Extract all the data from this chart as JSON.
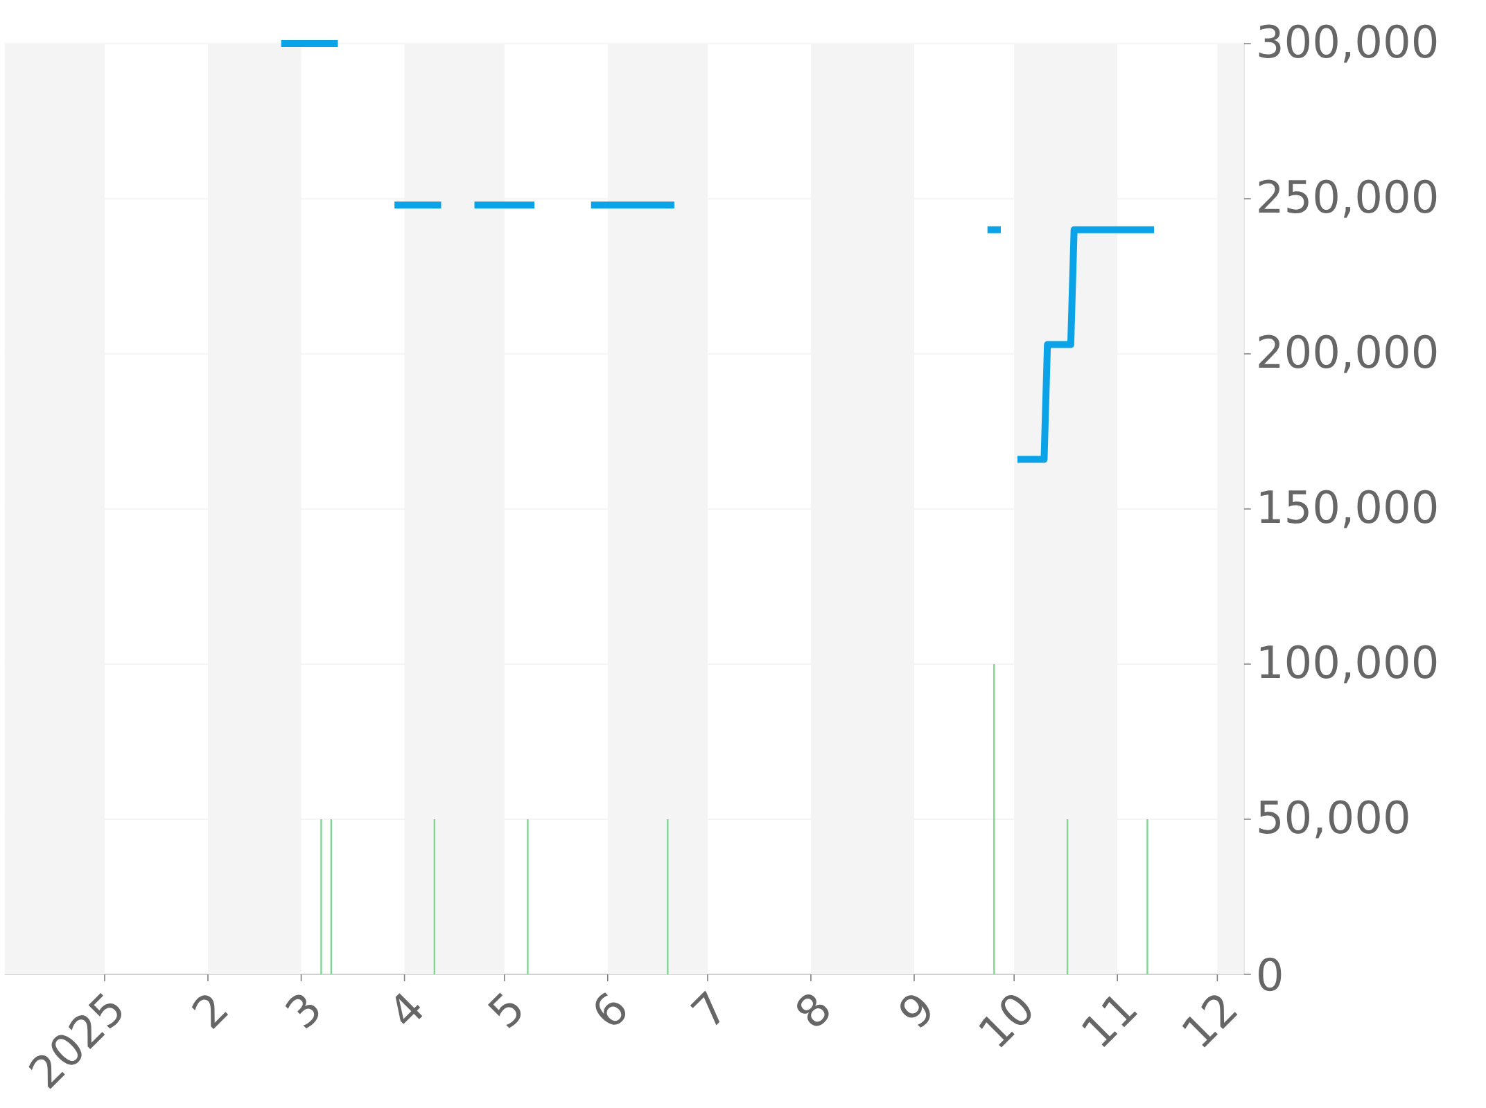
{
  "chart_data": {
    "type": "line",
    "xlim": [
      "2024-12-02",
      "2025-12-09"
    ],
    "ylim": [
      0,
      300000
    ],
    "xticks": [
      {
        "value": "2025-01-01",
        "label": "2025"
      },
      {
        "value": "2025-02-01",
        "label": "2"
      },
      {
        "value": "2025-03-01",
        "label": "3"
      },
      {
        "value": "2025-04-01",
        "label": "4"
      },
      {
        "value": "2025-05-01",
        "label": "5"
      },
      {
        "value": "2025-06-01",
        "label": "6"
      },
      {
        "value": "2025-07-01",
        "label": "7"
      },
      {
        "value": "2025-08-01",
        "label": "8"
      },
      {
        "value": "2025-09-01",
        "label": "9"
      },
      {
        "value": "2025-10-01",
        "label": "10"
      },
      {
        "value": "2025-11-01",
        "label": "11"
      },
      {
        "value": "2025-12-01",
        "label": "12"
      }
    ],
    "yticks": [
      0,
      {
        "value": 50000,
        "label": "50,000"
      },
      {
        "value": 100000,
        "label": "100,000"
      },
      {
        "value": 150000,
        "label": "150,000"
      },
      {
        "value": 200000,
        "label": "200,000"
      },
      {
        "value": 250000,
        "label": "250,000"
      },
      {
        "value": 300000,
        "label": "300,000"
      }
    ],
    "grid": "y",
    "bands": [
      {
        "axis": "x",
        "from": "2024-12-02",
        "to": "2025-01-01",
        "color": "#f4f4f4"
      },
      {
        "axis": "x",
        "from": "2025-02-01",
        "to": "2025-03-01",
        "color": "#f4f4f4"
      },
      {
        "axis": "x",
        "from": "2025-04-01",
        "to": "2025-05-01",
        "color": "#f4f4f4"
      },
      {
        "axis": "x",
        "from": "2025-06-01",
        "to": "2025-07-01",
        "color": "#f4f4f4"
      },
      {
        "axis": "x",
        "from": "2025-08-01",
        "to": "2025-09-01",
        "color": "#f4f4f4"
      },
      {
        "axis": "x",
        "from": "2025-10-01",
        "to": "2025-11-01",
        "color": "#f4f4f4"
      },
      {
        "axis": "x",
        "from": "2025-12-01",
        "to": "2025-12-09",
        "color": "#f4f4f4"
      }
    ],
    "series": [
      {
        "type": "bar",
        "color": "#80d494",
        "x": [
          "2025-03-07",
          "2025-03-10",
          "2025-04-10",
          "2025-05-08",
          "2025-06-19",
          "2025-09-25",
          "2025-10-17",
          "2025-11-10"
        ],
        "values": [
          50000,
          50000,
          50000,
          50000,
          50000,
          100000,
          50000,
          50000
        ]
      },
      {
        "color": "#0ba3e8",
        "x": [
          "2025-02-23",
          "2025-03-12",
          "2025-03-20",
          "2025-03-29",
          "2025-04-12",
          "2025-04-17",
          "2025-04-22",
          "2025-05-10",
          "2025-05-18",
          "2025-05-27",
          "2025-06-21",
          "2025-08-01",
          "2025-09-23",
          "2025-09-27",
          "2025-09-30",
          "2025-10-02",
          "2025-10-10",
          "2025-10-11",
          "2025-10-18",
          "2025-10-19",
          "2025-11-12"
        ],
        "values": [
          300000,
          300000,
          null,
          248000,
          248000,
          null,
          248000,
          248000,
          null,
          248000,
          248000,
          null,
          240000,
          240000,
          null,
          166000,
          166000,
          203000,
          203000,
          240000,
          240000
        ]
      }
    ]
  }
}
